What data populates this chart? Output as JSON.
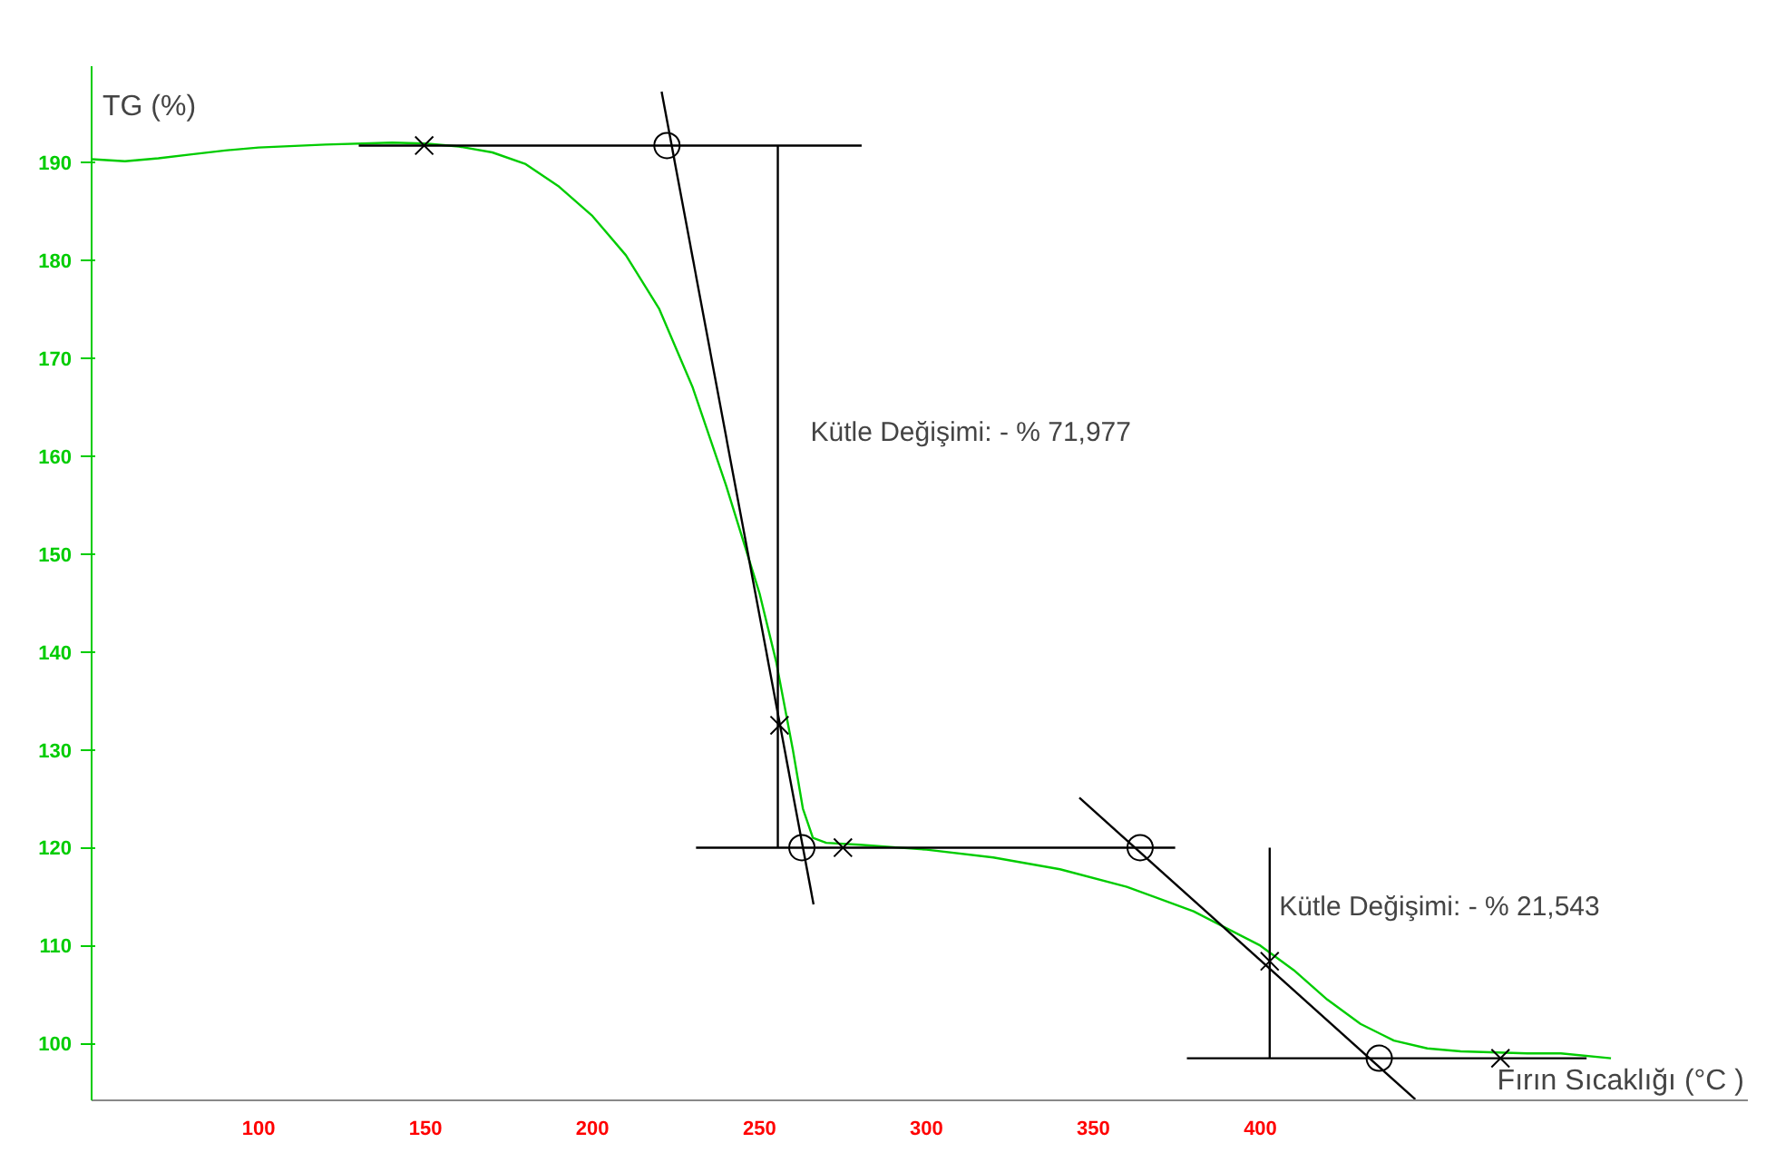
{
  "chart_data": {
    "type": "line",
    "xlabel": "Fırın Sıcaklığı (°C )",
    "ylabel": "TG (%)",
    "xlim": [
      50,
      546
    ],
    "ylim": [
      94.2,
      199.8
    ],
    "xticks": [
      100,
      150,
      200,
      250,
      300,
      350,
      400
    ],
    "yticks": [
      100,
      110,
      120,
      130,
      140,
      150,
      160,
      170,
      180,
      190
    ],
    "grid": false,
    "series": [
      {
        "color": "#00cc00",
        "x": [
          50,
          60,
          70,
          80,
          90,
          100,
          120,
          140,
          150,
          160,
          170,
          180,
          190,
          200,
          210,
          220,
          230,
          240,
          250,
          255,
          260,
          263,
          266,
          270,
          280,
          300,
          320,
          340,
          360,
          380,
          400,
          410,
          420,
          430,
          440,
          450,
          460,
          480,
          490,
          505
        ],
        "values": [
          190.3,
          190.1,
          190.4,
          190.8,
          191.2,
          191.5,
          191.8,
          192,
          191.9,
          191.6,
          191,
          189.8,
          187.5,
          184.5,
          180.5,
          175,
          167,
          157,
          146,
          139,
          130,
          124,
          121,
          120.5,
          120.3,
          119.8,
          119,
          117.8,
          116,
          113.5,
          110,
          107.5,
          104.5,
          102,
          100.3,
          99.5,
          99.2,
          99,
          99,
          98.5
        ]
      },
      {
        "color": "#000000",
        "x": [
          130,
          280.6
        ],
        "values": [
          191.7,
          191.7
        ]
      },
      {
        "color": "#000000",
        "x": [
          220.7,
          266.2
        ],
        "values": [
          197.2,
          114.2
        ]
      },
      {
        "color": "#000000",
        "x": [
          255.5,
          255.5
        ],
        "values": [
          191.7,
          120
        ]
      },
      {
        "color": "#000000",
        "x": [
          231,
          374.5
        ],
        "values": [
          120,
          120
        ]
      },
      {
        "color": "#000000",
        "x": [
          345.8,
          446.4
        ],
        "values": [
          125.1,
          94.3
        ]
      },
      {
        "color": "#000000",
        "x": [
          402.8,
          402.8
        ],
        "values": [
          120,
          98.5
        ]
      },
      {
        "color": "#000000",
        "x": [
          378,
          497.7
        ],
        "values": [
          98.5,
          98.5
        ]
      },
      {
        "type": "scatter",
        "marker": "cross",
        "color": "#000000",
        "x": [
          149.6,
          256,
          275,
          402.8,
          471.9
        ],
        "values": [
          191.7,
          132.5,
          120,
          108.4,
          98.5
        ]
      },
      {
        "type": "scatter",
        "marker": "circle",
        "color": "#000000",
        "x": [
          222.3,
          262.7,
          364,
          435.6
        ],
        "values": [
          191.7,
          120,
          120,
          98.5
        ]
      }
    ],
    "annotations": [
      "Kütle Değişimi: - % 71,977",
      "Kütle Değişimi: - % 21,543"
    ]
  }
}
